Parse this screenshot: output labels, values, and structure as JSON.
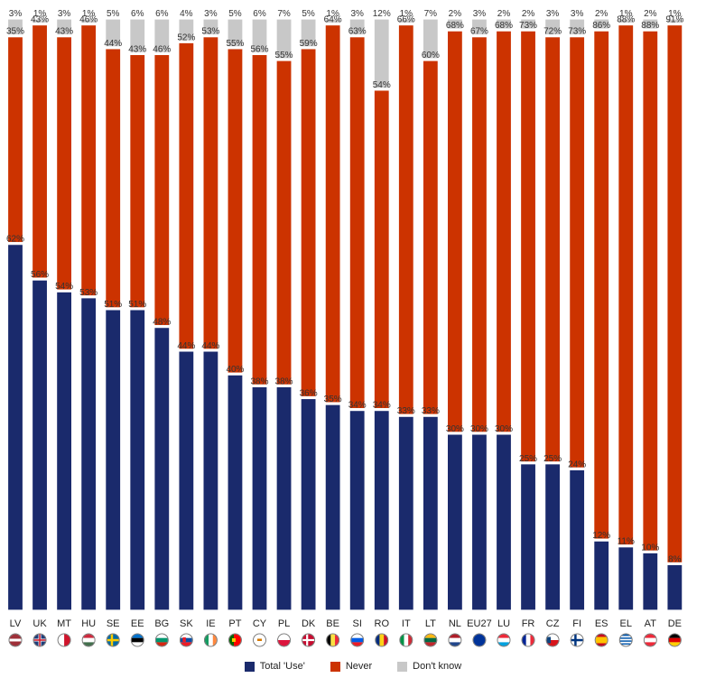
{
  "chart_data": {
    "type": "bar",
    "stacked": true,
    "orientation": "vertical",
    "categories": [
      "LV",
      "UK",
      "MT",
      "HU",
      "SE",
      "EE",
      "BG",
      "SK",
      "IE",
      "PT",
      "CY",
      "PL",
      "DK",
      "BE",
      "SI",
      "RO",
      "IT",
      "LT",
      "NL",
      "EU27",
      "LU",
      "FR",
      "CZ",
      "FI",
      "ES",
      "EL",
      "AT",
      "DE"
    ],
    "series": [
      {
        "name": "Total 'Use'",
        "color": "#1a2a6c",
        "values": [
          62,
          56,
          54,
          53,
          51,
          51,
          48,
          44,
          44,
          40,
          38,
          38,
          36,
          35,
          34,
          34,
          33,
          33,
          30,
          30,
          30,
          25,
          25,
          24,
          12,
          11,
          10,
          8
        ]
      },
      {
        "name": "Never",
        "color": "#cc3300",
        "values": [
          35,
          43,
          43,
          46,
          44,
          43,
          46,
          52,
          53,
          55,
          56,
          55,
          59,
          64,
          63,
          54,
          66,
          60,
          68,
          67,
          68,
          73,
          72,
          73,
          86,
          88,
          88,
          91
        ]
      },
      {
        "name": "Don't know",
        "color": "#c8c8c8",
        "values": [
          3,
          1,
          3,
          1,
          5,
          6,
          6,
          4,
          3,
          5,
          6,
          7,
          5,
          1,
          3,
          12,
          1,
          7,
          2,
          3,
          2,
          2,
          3,
          3,
          2,
          1,
          2,
          1
        ]
      }
    ],
    "value_suffix": "%",
    "ylim": [
      0,
      100
    ],
    "grid": false,
    "legend_position": "bottom-center",
    "xlabel": "",
    "ylabel": "",
    "title": ""
  },
  "legend": {
    "items": [
      {
        "label": "Total 'Use'",
        "color": "#1a2a6c"
      },
      {
        "label": "Never",
        "color": "#cc3300"
      },
      {
        "label": "Don't know",
        "color": "#c8c8c8"
      }
    ]
  },
  "flag_icons": [
    "latvia-flag-icon",
    "uk-flag-icon",
    "malta-flag-icon",
    "hungary-flag-icon",
    "sweden-flag-icon",
    "estonia-flag-icon",
    "bulgaria-flag-icon",
    "slovakia-flag-icon",
    "ireland-flag-icon",
    "portugal-flag-icon",
    "cyprus-flag-icon",
    "poland-flag-icon",
    "denmark-flag-icon",
    "belgium-flag-icon",
    "slovenia-flag-icon",
    "romania-flag-icon",
    "italy-flag-icon",
    "lithuania-flag-icon",
    "netherlands-flag-icon",
    "eu-flag-icon",
    "luxembourg-flag-icon",
    "france-flag-icon",
    "czech-flag-icon",
    "finland-flag-icon",
    "spain-flag-icon",
    "greece-flag-icon",
    "austria-flag-icon",
    "germany-flag-icon"
  ]
}
